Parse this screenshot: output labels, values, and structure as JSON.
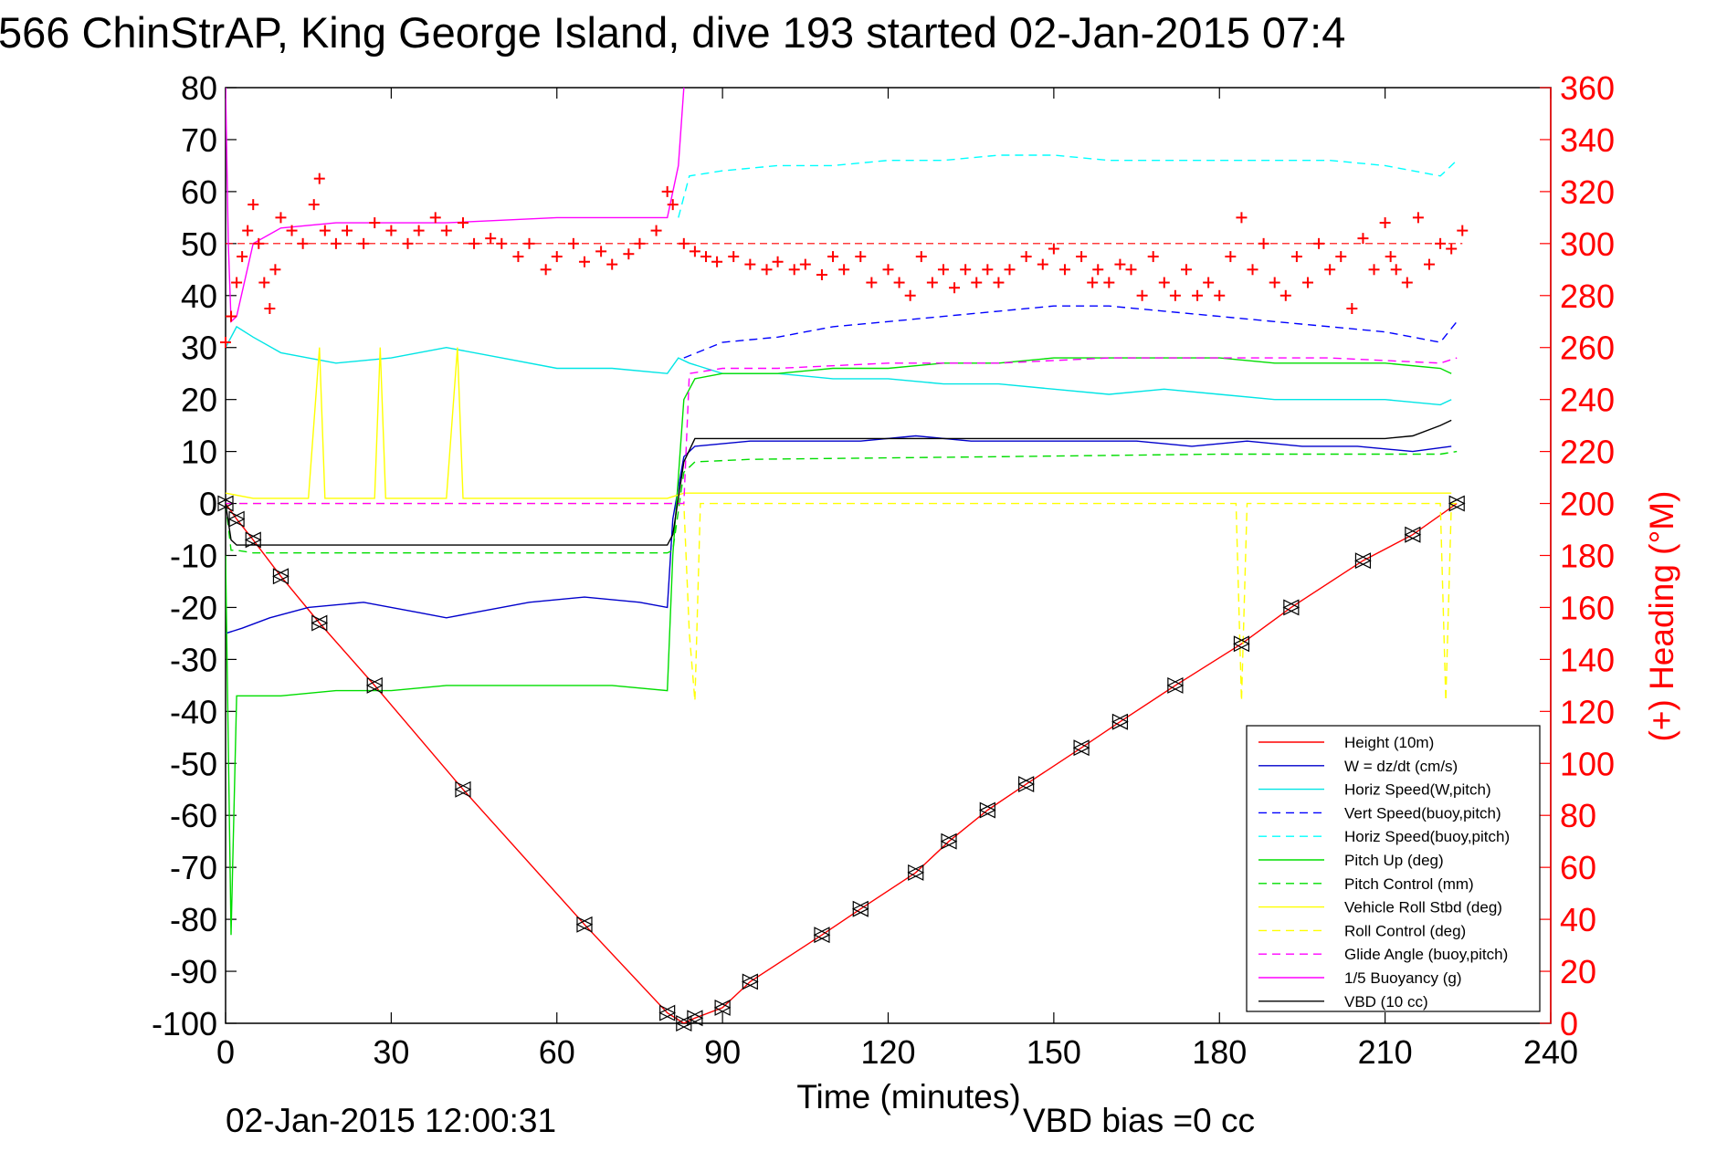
{
  "page": {
    "title": "566 ChinStrAP, King George Island, dive 193 started 02-Jan-2015 07:4",
    "timestamp": "02-Jan-2015 12:00:31",
    "vbd_bias": "VBD bias =0 cc"
  },
  "colors": {
    "background": "#ffffff",
    "axis": "#000000",
    "right_axis": "#ff0000",
    "height": "#ff0000",
    "w": "#0000cc",
    "horiz_speed_w": "#00e5e5",
    "vert_speed_buoy": "#0000ff",
    "horiz_speed_buoy": "#00ffff",
    "pitch_up": "#00dd00",
    "pitch_control": "#00dd00",
    "roll": "#ffff00",
    "roll_control": "#ffff00",
    "glide_angle": "#ff00ff",
    "buoyancy": "#ff00ff",
    "vbd": "#000000",
    "heading": "#ff0000"
  },
  "chart_data": {
    "type": "line",
    "xlabel": "Time (minutes)",
    "ylabel": "",
    "y2label": "(+) Heading (°M)",
    "xlim": [
      0,
      240
    ],
    "ylim": [
      -100,
      80
    ],
    "y2lim": [
      0,
      360
    ],
    "xticks": [
      0,
      30,
      60,
      90,
      120,
      150,
      180,
      210,
      240
    ],
    "yticks": [
      -100,
      -90,
      -80,
      -70,
      -60,
      -50,
      -40,
      -30,
      -20,
      -10,
      0,
      10,
      20,
      30,
      40,
      50,
      60,
      70,
      80
    ],
    "y2ticks": [
      0,
      20,
      40,
      60,
      80,
      100,
      120,
      140,
      160,
      180,
      200,
      220,
      240,
      260,
      280,
      300,
      320,
      340,
      360
    ],
    "grid": false,
    "legend_position": "bottom-right",
    "series": [
      {
        "name": "Height (10m)",
        "key": "height",
        "dash": "solid",
        "x": [
          0,
          2,
          5,
          10,
          17,
          27,
          43,
          65,
          80,
          83,
          85,
          90,
          95,
          108,
          115,
          125,
          131,
          138,
          145,
          155,
          162,
          172,
          184,
          193,
          206,
          215,
          223
        ],
        "y": [
          0,
          -3,
          -7,
          -14,
          -23,
          -35,
          -55,
          -81,
          -98,
          -100,
          -99,
          -97,
          -92,
          -83,
          -78,
          -71,
          -65,
          -59,
          -54,
          -47,
          -42,
          -35,
          -27,
          -20,
          -11,
          -6,
          0
        ]
      },
      {
        "name": "W = dz/dt (cm/s)",
        "key": "w",
        "dash": "solid",
        "x": [
          0,
          3,
          8,
          15,
          25,
          35,
          40,
          45,
          55,
          65,
          75,
          80,
          81,
          83,
          85,
          95,
          105,
          115,
          125,
          135,
          145,
          155,
          165,
          175,
          185,
          195,
          205,
          215,
          222
        ],
        "y": [
          -25,
          -24,
          -22,
          -20,
          -19,
          -21,
          -22,
          -21,
          -19,
          -18,
          -19,
          -20,
          -3,
          9,
          11,
          12,
          12,
          12,
          13,
          12,
          12,
          12,
          12,
          11,
          12,
          11,
          11,
          10,
          11
        ]
      },
      {
        "name": "Horiz Speed(W,pitch)",
        "key": "horiz_speed_w",
        "dash": "solid",
        "x": [
          0,
          2,
          5,
          10,
          20,
          30,
          40,
          50,
          60,
          70,
          80,
          82,
          84,
          90,
          100,
          110,
          120,
          130,
          140,
          150,
          160,
          170,
          180,
          190,
          200,
          210,
          220,
          222
        ],
        "y": [
          30,
          34,
          32,
          29,
          27,
          28,
          30,
          28,
          26,
          26,
          25,
          28,
          27,
          25,
          25,
          24,
          24,
          23,
          23,
          22,
          21,
          22,
          21,
          20,
          20,
          20,
          19,
          20
        ]
      },
      {
        "name": "Vert Speed(buoy,pitch)",
        "key": "vert_speed_buoy",
        "dash": "dashed",
        "x": [
          83,
          90,
          100,
          110,
          120,
          130,
          140,
          150,
          160,
          170,
          180,
          190,
          200,
          210,
          220,
          223
        ],
        "y": [
          28,
          31,
          32,
          34,
          35,
          36,
          37,
          38,
          38,
          37,
          36,
          35,
          34,
          33,
          31,
          35
        ]
      },
      {
        "name": "Horiz Speed(buoy,pitch)",
        "key": "horiz_speed_buoy",
        "dash": "dashed",
        "x": [
          82,
          84,
          90,
          100,
          110,
          120,
          130,
          140,
          150,
          160,
          170,
          180,
          190,
          200,
          210,
          220,
          223
        ],
        "y": [
          55,
          63,
          64,
          65,
          65,
          66,
          66,
          67,
          67,
          66,
          66,
          66,
          66,
          66,
          65,
          63,
          66
        ]
      },
      {
        "name": "Pitch Up (deg)",
        "key": "pitch_up",
        "dash": "solid",
        "x": [
          0,
          1,
          2,
          5,
          10,
          20,
          30,
          40,
          50,
          60,
          70,
          80,
          81,
          83,
          85,
          90,
          100,
          110,
          120,
          130,
          140,
          150,
          160,
          170,
          180,
          190,
          200,
          210,
          220,
          222
        ],
        "y": [
          -10,
          -83,
          -37,
          -37,
          -37,
          -36,
          -36,
          -35,
          -35,
          -35,
          -35,
          -36,
          -10,
          20,
          24,
          25,
          25,
          26,
          26,
          27,
          27,
          28,
          28,
          28,
          28,
          27,
          27,
          27,
          26,
          25
        ]
      },
      {
        "name": "Pitch Control (mm)",
        "key": "pitch_control",
        "dash": "dashed",
        "x": [
          0,
          1,
          2,
          5,
          80,
          81,
          83,
          85,
          95,
          140,
          180,
          220,
          223
        ],
        "y": [
          0,
          -9,
          -9,
          -9.5,
          -9.5,
          -9,
          6,
          8,
          8.5,
          9,
          9.5,
          9.5,
          10
        ]
      },
      {
        "name": "Vehicle Roll Stbd (deg)",
        "key": "roll",
        "dash": "solid",
        "x": [
          0,
          5,
          15,
          17,
          18,
          20,
          27,
          28,
          29,
          40,
          42,
          43,
          60,
          80,
          83,
          90,
          120,
          150,
          180,
          210,
          222
        ],
        "y": [
          2,
          1,
          1,
          30,
          1,
          1,
          1,
          30,
          1,
          1,
          30,
          1,
          1,
          1,
          2,
          2,
          2,
          2,
          2,
          2,
          2
        ]
      },
      {
        "name": "Roll Control (deg)",
        "key": "roll_control",
        "dash": "dashed",
        "x": [
          0,
          83,
          84,
          85,
          86,
          90,
          183,
          184,
          185,
          220,
          221,
          222,
          223
        ],
        "y": [
          0,
          0,
          -25,
          -38,
          0,
          0,
          0,
          -38,
          0,
          0,
          -38,
          0,
          0
        ]
      },
      {
        "name": "Glide Angle (buoy,pitch)",
        "key": "glide_angle",
        "dash": "dashed",
        "x": [
          0,
          83,
          84,
          90,
          100,
          120,
          140,
          160,
          180,
          200,
          220,
          223
        ],
        "y": [
          0,
          0,
          25,
          26,
          26,
          27,
          27,
          28,
          28,
          28,
          27,
          28
        ]
      },
      {
        "name": "1/5 Buoyancy (g)",
        "key": "buoyancy",
        "dash": "solid",
        "x": [
          0,
          0.5,
          1,
          2,
          5,
          10,
          20,
          40,
          60,
          80,
          82,
          83
        ],
        "y": [
          80,
          50,
          35,
          36,
          50,
          53,
          54,
          54,
          55,
          55,
          65,
          80
        ]
      },
      {
        "name": "VBD (10 cc)",
        "key": "vbd",
        "dash": "solid",
        "x": [
          0,
          1,
          2,
          5,
          80,
          81,
          83,
          85,
          180,
          210,
          215,
          220,
          222
        ],
        "y": [
          0,
          -7,
          -8,
          -8,
          -8,
          -6,
          8,
          12.5,
          12.5,
          12.5,
          13,
          15,
          16
        ]
      }
    ],
    "heading": {
      "name": "Heading",
      "axis": "right",
      "marker": "+",
      "reference": 300,
      "x": [
        0,
        1,
        2,
        3,
        4,
        5,
        6,
        7,
        8,
        9,
        10,
        12,
        14,
        16,
        17,
        18,
        20,
        22,
        25,
        27,
        30,
        33,
        35,
        38,
        40,
        43,
        45,
        48,
        50,
        53,
        55,
        58,
        60,
        63,
        65,
        68,
        70,
        73,
        75,
        78,
        80,
        81,
        83,
        85,
        87,
        89,
        92,
        95,
        98,
        100,
        103,
        105,
        108,
        110,
        112,
        115,
        117,
        120,
        122,
        124,
        126,
        128,
        130,
        132,
        134,
        136,
        138,
        140,
        142,
        145,
        148,
        150,
        152,
        155,
        157,
        158,
        160,
        162,
        164,
        166,
        168,
        170,
        172,
        174,
        176,
        178,
        180,
        182,
        184,
        186,
        188,
        190,
        192,
        194,
        196,
        198,
        200,
        202,
        204,
        206,
        208,
        210,
        211,
        212,
        214,
        216,
        218,
        220,
        222,
        224
      ],
      "y": [
        262,
        272,
        285,
        295,
        305,
        315,
        300,
        285,
        275,
        290,
        310,
        305,
        300,
        315,
        325,
        305,
        300,
        305,
        300,
        308,
        305,
        300,
        305,
        310,
        305,
        308,
        300,
        302,
        300,
        295,
        300,
        290,
        295,
        300,
        293,
        297,
        292,
        296,
        300,
        305,
        320,
        315,
        300,
        297,
        295,
        293,
        295,
        292,
        290,
        293,
        290,
        292,
        288,
        295,
        290,
        295,
        285,
        290,
        285,
        280,
        295,
        285,
        290,
        283,
        290,
        285,
        290,
        285,
        290,
        295,
        292,
        298,
        290,
        295,
        285,
        290,
        285,
        292,
        290,
        280,
        295,
        285,
        280,
        290,
        280,
        285,
        280,
        295,
        310,
        290,
        300,
        285,
        280,
        295,
        285,
        300,
        290,
        295,
        275,
        302,
        290,
        308,
        295,
        290,
        285,
        310,
        292,
        300,
        298,
        305
      ]
    }
  }
}
